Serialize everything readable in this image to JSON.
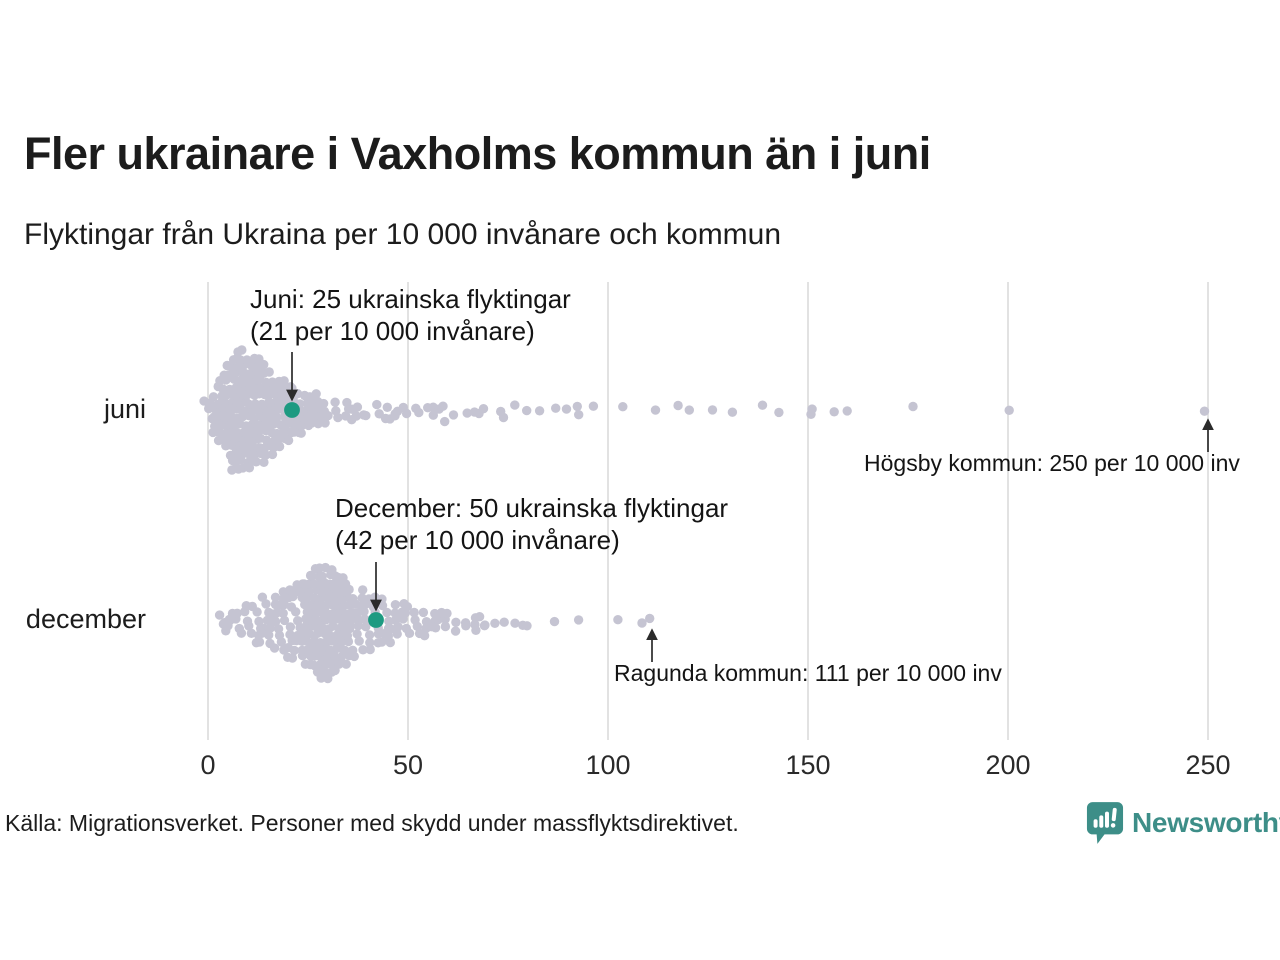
{
  "header": {
    "title": "Fler ukrainare i Vaxholms kommun än i juni",
    "subtitle": "Flyktingar från Ukraina per 10 000 invånare och kommun"
  },
  "footer": {
    "source": "Källa: Migrationsverket. Personer med skydd under massflyktsdirektivet.",
    "brand": "Newsworthy"
  },
  "colors": {
    "dot": "#c5c4d2",
    "highlight": "#1d9a81",
    "gridline": "#d8d8d8",
    "arrow": "#2b2b2b",
    "brand_teal": "#3d8e88"
  },
  "chart_data": {
    "type": "scatter",
    "subtype": "beeswarm",
    "title": "Fler ukrainare i Vaxholms kommun än i juni",
    "subtitle": "Flyktingar från Ukraina per 10 000 invånare och kommun",
    "xlabel": "",
    "ylabel": "",
    "xlim": [
      0,
      260
    ],
    "x_ticks": [
      0,
      50,
      100,
      150,
      200,
      250
    ],
    "grid": "vertical",
    "rows": [
      {
        "label": "juni",
        "highlight": {
          "value": 21,
          "line1": "Juni: 25 ukrainska flyktingar",
          "line2": "(21 per 10 000 invånare)"
        },
        "outlier": {
          "value": 250,
          "text": "Högsby kommun: 250 per 10 000 inv"
        },
        "bins": [
          [
            0,
            3
          ],
          [
            1,
            4
          ],
          [
            2,
            6
          ],
          [
            3,
            8
          ],
          [
            4,
            10
          ],
          [
            5,
            12
          ],
          [
            6,
            14
          ],
          [
            7,
            16
          ],
          [
            8,
            17
          ],
          [
            9,
            17
          ],
          [
            10,
            16
          ],
          [
            11,
            15
          ],
          [
            12,
            15
          ],
          [
            13,
            14
          ],
          [
            14,
            13
          ],
          [
            15,
            12
          ],
          [
            16,
            11
          ],
          [
            17,
            10
          ],
          [
            18,
            9
          ],
          [
            19,
            8
          ],
          [
            20,
            8
          ],
          [
            21,
            7
          ],
          [
            22,
            7
          ],
          [
            23,
            6
          ],
          [
            24,
            6
          ],
          [
            25,
            5
          ],
          [
            26,
            5
          ],
          [
            27,
            4
          ],
          [
            28,
            4
          ],
          [
            29,
            4
          ],
          [
            30,
            3
          ],
          [
            32,
            3
          ],
          [
            34,
            3
          ],
          [
            36,
            2
          ],
          [
            38,
            2
          ],
          [
            40,
            2
          ],
          [
            42,
            2
          ],
          [
            44,
            2
          ],
          [
            46,
            2
          ],
          [
            48,
            2
          ],
          [
            50,
            2
          ],
          [
            52,
            2
          ],
          [
            54,
            1
          ],
          [
            56,
            2
          ],
          [
            58,
            1
          ],
          [
            60,
            2
          ],
          [
            62,
            1
          ],
          [
            64,
            1
          ],
          [
            66,
            1
          ],
          [
            68,
            1
          ],
          [
            70,
            1
          ],
          [
            73,
            2
          ],
          [
            76,
            1
          ],
          [
            80,
            1
          ],
          [
            83,
            1
          ],
          [
            86,
            1
          ],
          [
            90,
            1
          ],
          [
            93,
            2
          ],
          [
            96,
            1
          ],
          [
            104,
            1
          ],
          [
            113,
            1
          ],
          [
            117,
            1
          ],
          [
            120,
            1
          ],
          [
            126,
            1
          ],
          [
            132,
            1
          ],
          [
            138,
            1
          ],
          [
            144,
            1
          ],
          [
            150,
            1
          ],
          [
            151,
            1
          ],
          [
            157,
            1
          ],
          [
            159,
            1
          ],
          [
            177,
            1
          ],
          [
            200,
            1
          ],
          [
            250,
            1
          ]
        ]
      },
      {
        "label": "december",
        "highlight": {
          "value": 42,
          "line1": "December: 50 ukrainska flyktingar",
          "line2": "(42 per 10 000 invånare)"
        },
        "outlier": {
          "value": 111,
          "text": "Ragunda kommun: 111 per 10 000 inv"
        },
        "bins": [
          [
            2,
            1
          ],
          [
            4,
            2
          ],
          [
            5,
            2
          ],
          [
            6,
            3
          ],
          [
            8,
            4
          ],
          [
            10,
            5
          ],
          [
            12,
            6
          ],
          [
            14,
            7
          ],
          [
            16,
            8
          ],
          [
            18,
            9
          ],
          [
            20,
            10
          ],
          [
            22,
            11
          ],
          [
            24,
            12
          ],
          [
            25,
            12
          ],
          [
            26,
            13
          ],
          [
            27,
            13
          ],
          [
            28,
            15
          ],
          [
            29,
            16
          ],
          [
            30,
            16
          ],
          [
            31,
            15
          ],
          [
            32,
            14
          ],
          [
            33,
            13
          ],
          [
            34,
            12
          ],
          [
            35,
            11
          ],
          [
            36,
            10
          ],
          [
            38,
            9
          ],
          [
            40,
            8
          ],
          [
            42,
            7
          ],
          [
            44,
            7
          ],
          [
            46,
            6
          ],
          [
            48,
            5
          ],
          [
            50,
            5
          ],
          [
            52,
            4
          ],
          [
            54,
            4
          ],
          [
            56,
            3
          ],
          [
            58,
            3
          ],
          [
            60,
            3
          ],
          [
            62,
            2
          ],
          [
            64,
            2
          ],
          [
            66,
            2
          ],
          [
            68,
            2
          ],
          [
            70,
            2
          ],
          [
            72,
            1
          ],
          [
            74,
            1
          ],
          [
            76,
            1
          ],
          [
            78,
            1
          ],
          [
            80,
            1
          ],
          [
            86,
            1
          ],
          [
            93,
            1
          ],
          [
            103,
            1
          ],
          [
            108,
            1
          ],
          [
            111,
            1
          ]
        ]
      }
    ]
  }
}
